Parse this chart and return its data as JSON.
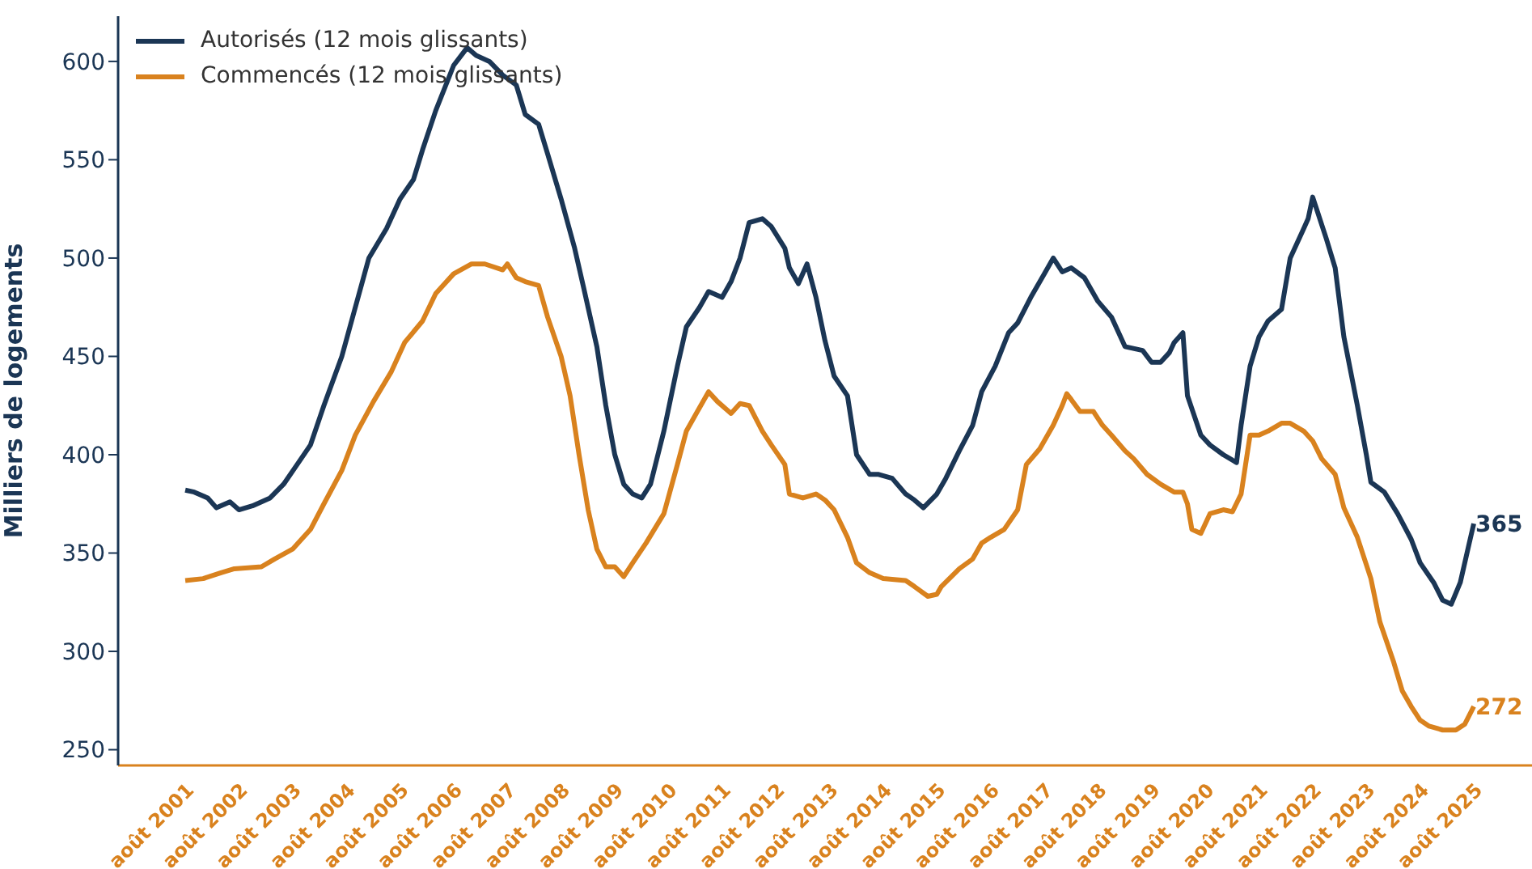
{
  "chart_data": {
    "type": "line",
    "ylabel": "Milliers de logements",
    "legend": "top left",
    "grid": false,
    "marker": "none",
    "line_style": "solid",
    "xlim": [
      "2000-05",
      "2026-09"
    ],
    "ylim": [
      242,
      623
    ],
    "yticks": [
      250,
      300,
      350,
      400,
      450,
      500,
      550,
      600
    ],
    "xticks": [
      {
        "value": "2001-08",
        "label": "août 2001"
      },
      {
        "value": "2002-08",
        "label": "août 2002"
      },
      {
        "value": "2003-08",
        "label": "août 2003"
      },
      {
        "value": "2004-08",
        "label": "août 2004"
      },
      {
        "value": "2005-08",
        "label": "août 2005"
      },
      {
        "value": "2006-08",
        "label": "août 2006"
      },
      {
        "value": "2007-08",
        "label": "août 2007"
      },
      {
        "value": "2008-08",
        "label": "août 2008"
      },
      {
        "value": "2009-08",
        "label": "août 2009"
      },
      {
        "value": "2010-08",
        "label": "août 2010"
      },
      {
        "value": "2011-08",
        "label": "août 2011"
      },
      {
        "value": "2012-08",
        "label": "août 2012"
      },
      {
        "value": "2013-08",
        "label": "août 2013"
      },
      {
        "value": "2014-08",
        "label": "août 2014"
      },
      {
        "value": "2015-08",
        "label": "août 2015"
      },
      {
        "value": "2016-08",
        "label": "août 2016"
      },
      {
        "value": "2017-08",
        "label": "août 2017"
      },
      {
        "value": "2018-08",
        "label": "août 2018"
      },
      {
        "value": "2019-08",
        "label": "août 2019"
      },
      {
        "value": "2020-08",
        "label": "août 2020"
      },
      {
        "value": "2021-08",
        "label": "août 2021"
      },
      {
        "value": "2022-08",
        "label": "août 2022"
      },
      {
        "value": "2023-08",
        "label": "août 2023"
      },
      {
        "value": "2024-08",
        "label": "août 2024"
      },
      {
        "value": "2025-08",
        "label": "août 2025"
      }
    ],
    "annotations": [
      {
        "text": "365",
        "x": "2025-08",
        "y": 365
      },
      {
        "text": "272",
        "x": "2025-08",
        "y": 272
      }
    ],
    "series": [
      {
        "name": "Autorisés (12 mois glissants)",
        "color": "#1b3655",
        "x": [
          "2001-08",
          "2001-10",
          "2002-01",
          "2002-03",
          "2002-06",
          "2002-08",
          "2002-11",
          "2003-03",
          "2003-06",
          "2003-09",
          "2003-12",
          "2004-03",
          "2004-07",
          "2004-10",
          "2005-01",
          "2005-05",
          "2005-08",
          "2005-11",
          "2006-01",
          "2006-04",
          "2006-08",
          "2006-11",
          "2007-01",
          "2007-04",
          "2007-07",
          "2007-10",
          "2007-12",
          "2008-03",
          "2008-05",
          "2008-08",
          "2008-11",
          "2009-01",
          "2009-04",
          "2009-06",
          "2009-08",
          "2009-10",
          "2009-12",
          "2010-02",
          "2010-04",
          "2010-07",
          "2010-10",
          "2010-12",
          "2011-03",
          "2011-05",
          "2011-08",
          "2011-10",
          "2011-12",
          "2012-02",
          "2012-05",
          "2012-07",
          "2012-10",
          "2012-11",
          "2013-01",
          "2013-03",
          "2013-05",
          "2013-07",
          "2013-09",
          "2013-12",
          "2014-02",
          "2014-05",
          "2014-07",
          "2014-10",
          "2015-01",
          "2015-03",
          "2015-05",
          "2015-08",
          "2015-10",
          "2016-01",
          "2016-04",
          "2016-06",
          "2016-09",
          "2016-12",
          "2017-02",
          "2017-05",
          "2017-08",
          "2017-10",
          "2017-12",
          "2018-02",
          "2018-05",
          "2018-08",
          "2018-11",
          "2019-02",
          "2019-06",
          "2019-08",
          "2019-10",
          "2019-12",
          "2020-01",
          "2020-03",
          "2020-04",
          "2020-07",
          "2020-09",
          "2020-12",
          "2021-03",
          "2021-04",
          "2021-06",
          "2021-08",
          "2021-10",
          "2022-01",
          "2022-03",
          "2022-06",
          "2022-07",
          "2022-08",
          "2022-11",
          "2023-01",
          "2023-03",
          "2023-06",
          "2023-08",
          "2023-09",
          "2023-12",
          "2024-03",
          "2024-06",
          "2024-08",
          "2024-11",
          "2025-01",
          "2025-03",
          "2025-05",
          "2025-07",
          "2025-08"
        ],
        "values": [
          382,
          381,
          378,
          373,
          376,
          372,
          374,
          378,
          385,
          395,
          405,
          425,
          450,
          475,
          500,
          515,
          530,
          540,
          555,
          575,
          598,
          607,
          603,
          600,
          593,
          588,
          573,
          568,
          553,
          530,
          505,
          485,
          455,
          425,
          400,
          385,
          380,
          378,
          385,
          412,
          445,
          465,
          475,
          483,
          480,
          488,
          500,
          518,
          520,
          516,
          505,
          495,
          487,
          497,
          480,
          458,
          440,
          430,
          400,
          390,
          390,
          388,
          380,
          377,
          373,
          380,
          388,
          402,
          415,
          432,
          445,
          462,
          467,
          480,
          492,
          500,
          493,
          495,
          490,
          478,
          470,
          455,
          453,
          447,
          447,
          452,
          457,
          462,
          430,
          410,
          405,
          400,
          396,
          415,
          445,
          460,
          468,
          474,
          500,
          515,
          520,
          531,
          510,
          495,
          460,
          425,
          400,
          386,
          381,
          370,
          357,
          345,
          335,
          326,
          324,
          335,
          355,
          365
        ]
      },
      {
        "name": "Commencés (12 mois glissants)",
        "color": "#d9821e",
        "x": [
          "2001-08",
          "2001-12",
          "2002-04",
          "2002-07",
          "2003-01",
          "2003-04",
          "2003-08",
          "2003-12",
          "2004-03",
          "2004-07",
          "2004-10",
          "2005-02",
          "2005-06",
          "2005-09",
          "2006-01",
          "2006-04",
          "2006-08",
          "2006-12",
          "2007-03",
          "2007-07",
          "2007-08",
          "2007-10",
          "2007-12",
          "2008-03",
          "2008-05",
          "2008-08",
          "2008-10",
          "2008-12",
          "2009-02",
          "2009-04",
          "2009-06",
          "2009-08",
          "2009-10",
          "2009-12",
          "2010-03",
          "2010-07",
          "2010-10",
          "2010-12",
          "2011-03",
          "2011-05",
          "2011-07",
          "2011-10",
          "2011-12",
          "2012-02",
          "2012-05",
          "2012-07",
          "2012-10",
          "2012-11",
          "2013-02",
          "2013-05",
          "2013-07",
          "2013-09",
          "2013-12",
          "2014-02",
          "2014-05",
          "2014-08",
          "2015-01",
          "2015-03",
          "2015-06",
          "2015-08",
          "2015-09",
          "2016-01",
          "2016-04",
          "2016-06",
          "2016-08",
          "2016-11",
          "2017-02",
          "2017-04",
          "2017-07",
          "2017-10",
          "2017-12",
          "2018-01",
          "2018-02",
          "2018-04",
          "2018-07",
          "2018-09",
          "2018-11",
          "2019-02",
          "2019-04",
          "2019-07",
          "2019-10",
          "2020-01",
          "2020-03",
          "2020-04",
          "2020-05",
          "2020-07",
          "2020-09",
          "2020-12",
          "2021-02",
          "2021-04",
          "2021-06",
          "2021-08",
          "2021-10",
          "2022-01",
          "2022-03",
          "2022-06",
          "2022-08",
          "2022-10",
          "2023-01",
          "2023-03",
          "2023-06",
          "2023-09",
          "2023-11",
          "2024-02",
          "2024-04",
          "2024-06",
          "2024-08",
          "2024-10",
          "2025-01",
          "2025-04",
          "2025-06",
          "2025-08"
        ],
        "values": [
          336,
          337,
          340,
          342,
          343,
          347,
          352,
          362,
          375,
          392,
          410,
          427,
          442,
          457,
          468,
          482,
          492,
          497,
          497,
          494,
          497,
          490,
          488,
          486,
          470,
          450,
          430,
          400,
          372,
          352,
          343,
          343,
          338,
          345,
          355,
          370,
          395,
          412,
          424,
          432,
          427,
          421,
          426,
          425,
          412,
          405,
          395,
          380,
          378,
          380,
          377,
          372,
          358,
          345,
          340,
          337,
          336,
          333,
          328,
          329,
          333,
          342,
          347,
          355,
          358,
          362,
          372,
          395,
          403,
          415,
          425,
          431,
          428,
          422,
          422,
          415,
          410,
          402,
          398,
          390,
          385,
          381,
          381,
          375,
          362,
          360,
          370,
          372,
          371,
          380,
          410,
          410,
          412,
          416,
          416,
          412,
          407,
          398,
          390,
          373,
          358,
          337,
          315,
          295,
          280,
          272,
          265,
          262,
          260,
          260,
          263,
          272
        ]
      }
    ]
  }
}
